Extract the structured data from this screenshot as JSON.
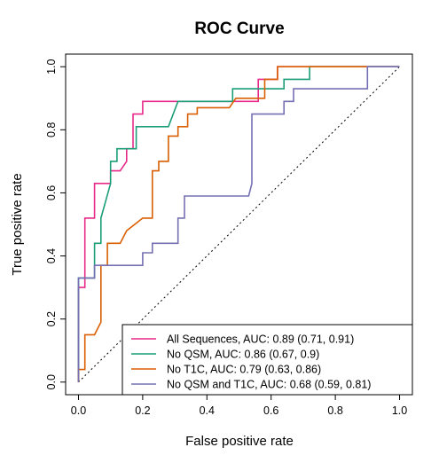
{
  "chart_data": {
    "type": "line",
    "title": "ROC Curve",
    "xlabel": "False positive rate",
    "ylabel": "True positive rate",
    "xlim": [
      -0.04,
      1.04
    ],
    "ylim": [
      -0.04,
      1.04
    ],
    "x_ticks": [
      "0.0",
      "0.2",
      "0.4",
      "0.6",
      "0.8",
      "1.0"
    ],
    "y_ticks": [
      "0.0",
      "0.2",
      "0.4",
      "0.6",
      "0.8",
      "1.0"
    ],
    "grid": false,
    "legend_position": "bottom-right",
    "reference_line": "diagonal dotted",
    "series": [
      {
        "name": "All Sequences, AUC: 0.89 (0.71, 0.91)",
        "color": "#e7298a",
        "points": [
          [
            0,
            0
          ],
          [
            0,
            0.3
          ],
          [
            0.02,
            0.3
          ],
          [
            0.02,
            0.52
          ],
          [
            0.05,
            0.52
          ],
          [
            0.05,
            0.63
          ],
          [
            0.1,
            0.63
          ],
          [
            0.1,
            0.67
          ],
          [
            0.13,
            0.67
          ],
          [
            0.15,
            0.7
          ],
          [
            0.15,
            0.74
          ],
          [
            0.17,
            0.74
          ],
          [
            0.17,
            0.85
          ],
          [
            0.2,
            0.85
          ],
          [
            0.2,
            0.89
          ],
          [
            0.56,
            0.89
          ],
          [
            0.56,
            0.96
          ],
          [
            0.62,
            0.96
          ],
          [
            0.62,
            1.0
          ],
          [
            1.0,
            1.0
          ]
        ]
      },
      {
        "name": "No QSM, AUC: 0.86 (0.67, 0.9)",
        "color": "#1b9e77",
        "points": [
          [
            0,
            0
          ],
          [
            0,
            0.33
          ],
          [
            0.05,
            0.33
          ],
          [
            0.05,
            0.44
          ],
          [
            0.07,
            0.44
          ],
          [
            0.07,
            0.52
          ],
          [
            0.1,
            0.63
          ],
          [
            0.1,
            0.7
          ],
          [
            0.12,
            0.7
          ],
          [
            0.12,
            0.74
          ],
          [
            0.18,
            0.74
          ],
          [
            0.18,
            0.81
          ],
          [
            0.28,
            0.81
          ],
          [
            0.31,
            0.89
          ],
          [
            0.48,
            0.89
          ],
          [
            0.48,
            0.93
          ],
          [
            0.64,
            0.93
          ],
          [
            0.64,
            0.96
          ],
          [
            0.72,
            0.96
          ],
          [
            0.72,
            1.0
          ],
          [
            1.0,
            1.0
          ]
        ]
      },
      {
        "name": "No T1C,  AUC:  0.79 (0.63, 0.86)",
        "color": "#d95f02",
        "points": [
          [
            0,
            0
          ],
          [
            0,
            0.04
          ],
          [
            0.02,
            0.04
          ],
          [
            0.02,
            0.15
          ],
          [
            0.05,
            0.15
          ],
          [
            0.07,
            0.19
          ],
          [
            0.07,
            0.37
          ],
          [
            0.09,
            0.37
          ],
          [
            0.09,
            0.44
          ],
          [
            0.13,
            0.44
          ],
          [
            0.15,
            0.48
          ],
          [
            0.2,
            0.52
          ],
          [
            0.23,
            0.52
          ],
          [
            0.23,
            0.67
          ],
          [
            0.25,
            0.67
          ],
          [
            0.25,
            0.7
          ],
          [
            0.28,
            0.7
          ],
          [
            0.28,
            0.78
          ],
          [
            0.31,
            0.78
          ],
          [
            0.31,
            0.81
          ],
          [
            0.34,
            0.81
          ],
          [
            0.34,
            0.85
          ],
          [
            0.37,
            0.85
          ],
          [
            0.37,
            0.87
          ],
          [
            0.47,
            0.87
          ],
          [
            0.49,
            0.9
          ],
          [
            0.58,
            0.9
          ],
          [
            0.58,
            0.96
          ],
          [
            0.62,
            0.96
          ],
          [
            0.62,
            1.0
          ],
          [
            1.0,
            1.0
          ]
        ]
      },
      {
        "name": "No QSM and T1C, AUC: 0.68 (0.59, 0.81)",
        "color": "#7570b3",
        "points": [
          [
            0,
            0
          ],
          [
            0,
            0.33
          ],
          [
            0.05,
            0.33
          ],
          [
            0.05,
            0.37
          ],
          [
            0.2,
            0.37
          ],
          [
            0.2,
            0.41
          ],
          [
            0.23,
            0.41
          ],
          [
            0.23,
            0.44
          ],
          [
            0.31,
            0.44
          ],
          [
            0.31,
            0.52
          ],
          [
            0.33,
            0.52
          ],
          [
            0.33,
            0.59
          ],
          [
            0.53,
            0.59
          ],
          [
            0.54,
            0.63
          ],
          [
            0.54,
            0.85
          ],
          [
            0.64,
            0.85
          ],
          [
            0.64,
            0.89
          ],
          [
            0.67,
            0.89
          ],
          [
            0.67,
            0.93
          ],
          [
            0.9,
            0.93
          ],
          [
            0.9,
            1.0
          ],
          [
            1.0,
            1.0
          ]
        ]
      }
    ]
  }
}
